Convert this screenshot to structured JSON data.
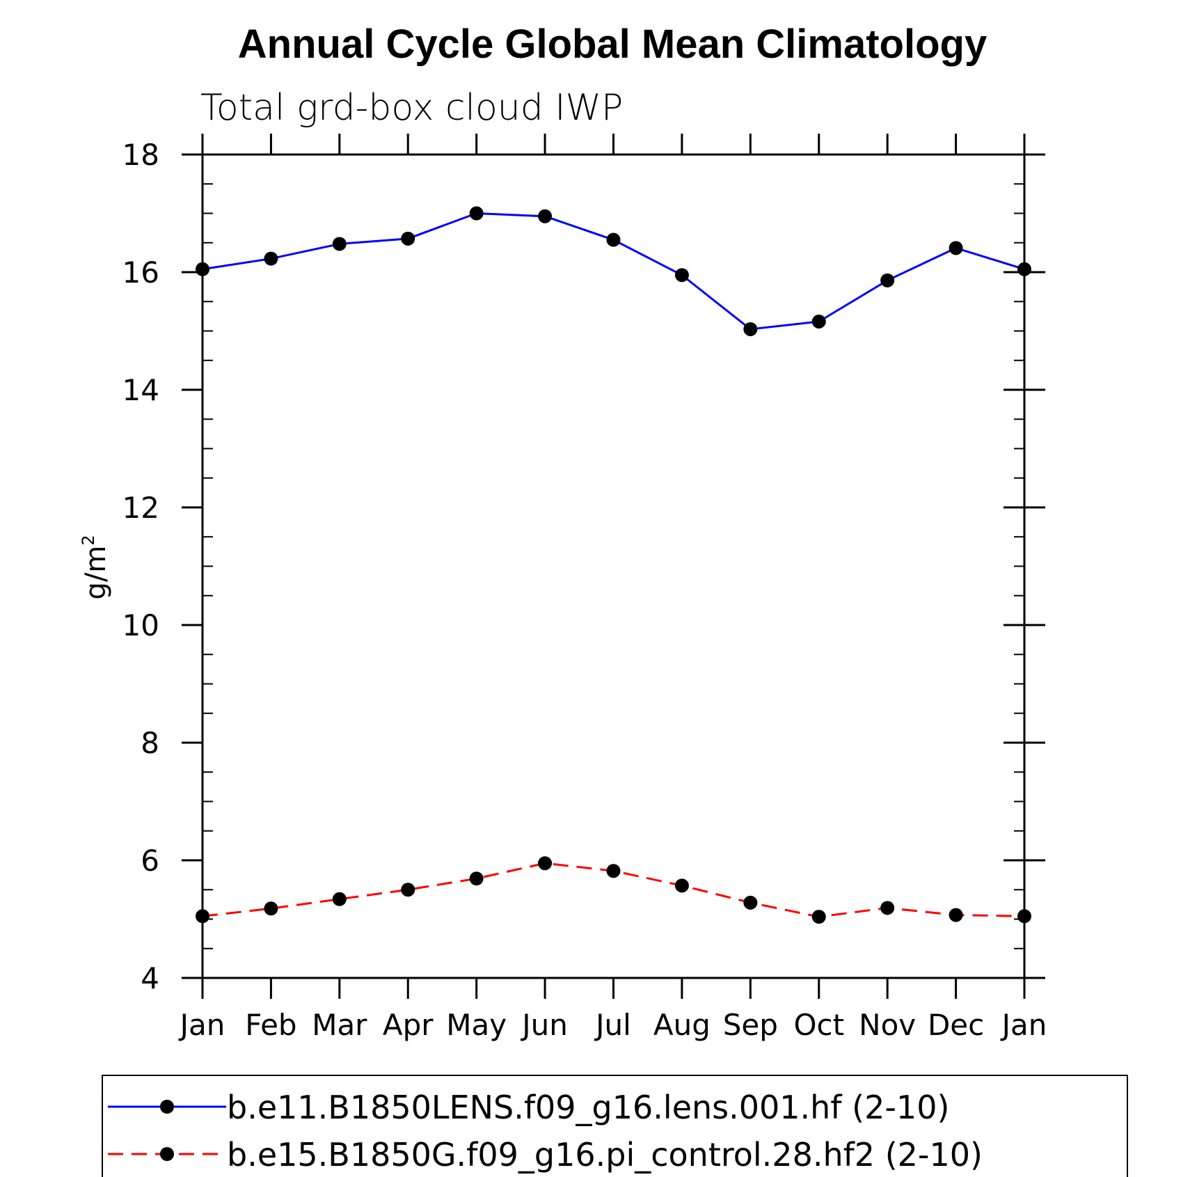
{
  "chart_data": {
    "type": "line",
    "title": "Annual Cycle Global Mean Climatology",
    "subtitle": "Total grd-box cloud IWP",
    "ylabel": "g/m",
    "ylabel_superscript": "2",
    "xlabel": "",
    "categories": [
      "Jan",
      "Feb",
      "Mar",
      "Apr",
      "May",
      "Jun",
      "Jul",
      "Aug",
      "Sep",
      "Oct",
      "Nov",
      "Dec",
      "Jan"
    ],
    "ylim": [
      4,
      18
    ],
    "yticks": [
      4,
      6,
      8,
      10,
      12,
      14,
      16,
      18
    ],
    "series": [
      {
        "name": "b.e11.B1850LENS.f09_g16.lens.001.hf (2-10)",
        "color": "#0000ff",
        "dash": "solid",
        "marker": "filled-circle",
        "values": [
          16.05,
          16.23,
          16.48,
          16.57,
          17.0,
          16.95,
          16.55,
          15.95,
          15.03,
          15.16,
          15.86,
          16.41,
          16.05
        ]
      },
      {
        "name": "b.e15.B1850G.f09_g16.pi_control.28.hf2 (2-10)",
        "color": "#ff0000",
        "dash": "dashed",
        "marker": "filled-circle",
        "values": [
          5.05,
          5.18,
          5.34,
          5.5,
          5.69,
          5.95,
          5.82,
          5.57,
          5.28,
          5.04,
          5.19,
          5.07,
          5.05
        ]
      }
    ],
    "legend_position": "bottom"
  }
}
